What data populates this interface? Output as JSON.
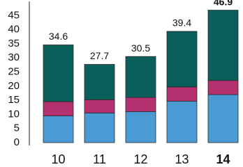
{
  "chart_data": {
    "type": "bar",
    "stacked": true,
    "categories": [
      "10",
      "11",
      "12",
      "13",
      "14"
    ],
    "series": [
      {
        "color": "#4a9bd4",
        "values": [
          9.5,
          10.5,
          11,
          14.7,
          17
        ]
      },
      {
        "color": "#b5306f",
        "values": [
          5,
          4.7,
          5,
          5,
          5
        ]
      },
      {
        "color": "#0b5f5a",
        "values": [
          20.1,
          12.5,
          14.5,
          19.7,
          24.9
        ]
      }
    ],
    "totals": [
      34.6,
      27.7,
      30.5,
      39.4,
      46.9
    ],
    "bold_last": true,
    "ylim": [
      0,
      50
    ],
    "yticks": [
      0,
      5,
      10,
      15,
      20,
      25,
      30,
      35,
      40,
      45
    ],
    "grid": false
  }
}
